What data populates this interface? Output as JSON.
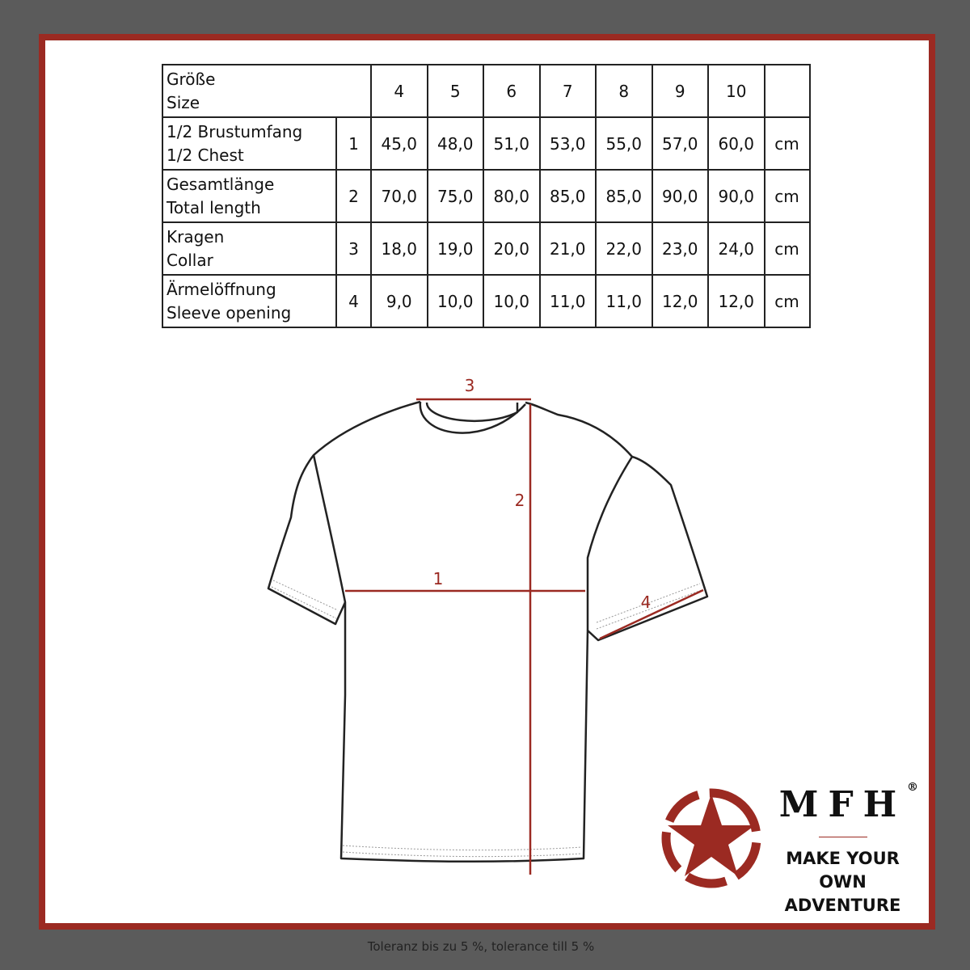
{
  "table": {
    "header": {
      "label_de": "Größe",
      "label_en": "Size",
      "sizes": [
        "4",
        "5",
        "6",
        "7",
        "8",
        "9",
        "10"
      ]
    },
    "rows": [
      {
        "label_de": "1/2 Brustumfang",
        "label_en": "1/2 Chest",
        "num": "1",
        "values": [
          "45,0",
          "48,0",
          "51,0",
          "53,0",
          "55,0",
          "57,0",
          "60,0"
        ],
        "unit": "cm"
      },
      {
        "label_de": "Gesamtlänge",
        "label_en": "Total length",
        "num": "2",
        "values": [
          "70,0",
          "75,0",
          "80,0",
          "85,0",
          "85,0",
          "90,0",
          "90,0"
        ],
        "unit": "cm"
      },
      {
        "label_de": "Kragen",
        "label_en": "Collar",
        "num": "3",
        "values": [
          "18,0",
          "19,0",
          "20,0",
          "21,0",
          "22,0",
          "23,0",
          "24,0"
        ],
        "unit": "cm"
      },
      {
        "label_de": "Ärmelöffnung",
        "label_en": "Sleeve opening",
        "num": "4",
        "values": [
          "9,0",
          "10,0",
          "10,0",
          "11,0",
          "11,0",
          "12,0",
          "12,0"
        ],
        "unit": "cm"
      }
    ]
  },
  "diagram": {
    "markers": [
      "1",
      "2",
      "3",
      "4"
    ],
    "measure_color": "#9b2a22"
  },
  "logo": {
    "brand": "MFH",
    "registered": "®",
    "slogan_line1": "MAKE YOUR OWN",
    "slogan_line2": "ADVENTURE",
    "color": "#9b2a22"
  },
  "footer": "Toleranz bis zu 5 %, tolerance till 5 %"
}
